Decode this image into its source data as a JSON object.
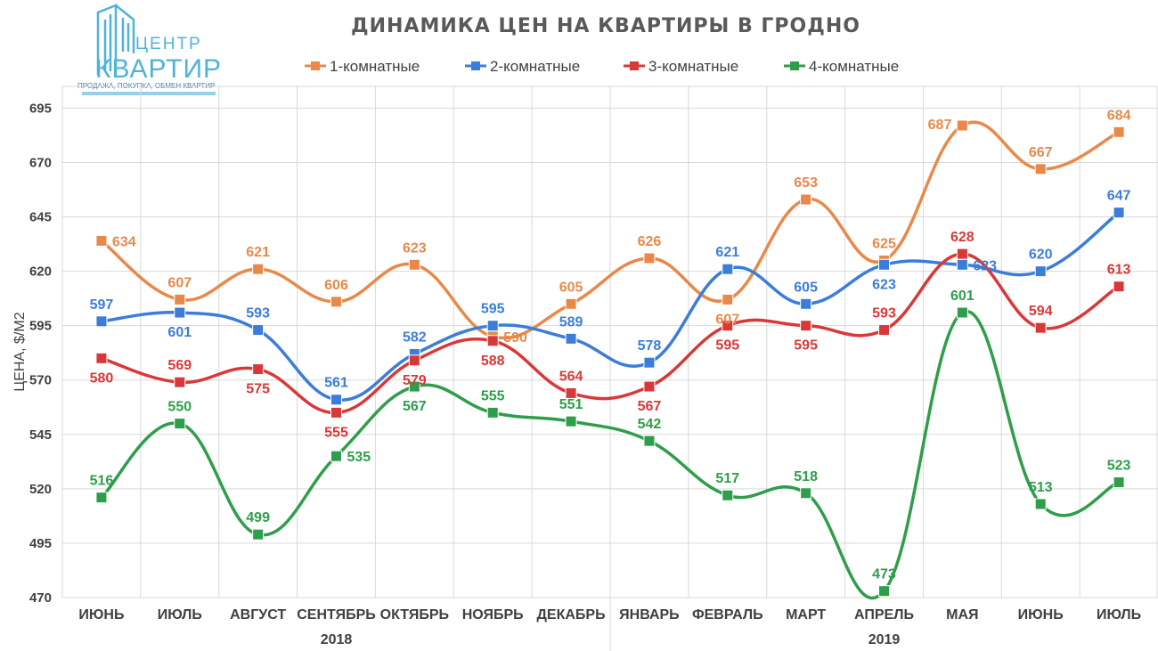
{
  "logo": {
    "top": "ЦЕНТР",
    "main": "КВАРТИР",
    "sub": "ПРОДАЖА, ПОКУПКА, ОБМЕН КВАРТИР",
    "color": "#4fb3d9"
  },
  "chart_data": {
    "type": "line",
    "title": "ДИНАМИКА ЦЕН НА КВАРТИРЫ В ГРОДНО",
    "ylabel": "ЦЕНА, $/М2",
    "xlabel": "",
    "ylim": [
      470,
      705
    ],
    "yticks": [
      470,
      495,
      520,
      545,
      570,
      595,
      620,
      645,
      670,
      695
    ],
    "grid": true,
    "legend_position": "top",
    "categories": [
      "ИЮНЬ",
      "ИЮЛЬ",
      "АВГУСТ",
      "СЕНТЯБРЬ",
      "ОКТЯБРЬ",
      "НОЯБРЬ",
      "ДЕКАБРЬ",
      "ЯНВАРЬ",
      "ФЕВРАЛЬ",
      "МАРТ",
      "АПРЕЛЬ",
      "МАЯ",
      "ИЮНЬ",
      "ИЮЛЬ"
    ],
    "year_groups": [
      {
        "label": "2018",
        "start": 0,
        "end": 6
      },
      {
        "label": "2019",
        "start": 7,
        "end": 13
      }
    ],
    "series": [
      {
        "name": "1-комнатные",
        "color": "#e8894a",
        "values": [
          634,
          607,
          621,
          606,
          623,
          590,
          605,
          626,
          607,
          653,
          625,
          687,
          667,
          684
        ]
      },
      {
        "name": "2-комнатные",
        "color": "#3b7dd8",
        "values": [
          597,
          601,
          593,
          561,
          582,
          595,
          589,
          578,
          621,
          605,
          623,
          623,
          620,
          647
        ]
      },
      {
        "name": "3-комнатные",
        "color": "#d93838",
        "values": [
          580,
          569,
          575,
          555,
          579,
          588,
          564,
          567,
          595,
          595,
          593,
          628,
          594,
          613
        ]
      },
      {
        "name": "4-комнатные",
        "color": "#2e9e4a",
        "values": [
          516,
          550,
          499,
          535,
          567,
          555,
          551,
          542,
          517,
          518,
          473,
          601,
          513,
          523
        ]
      }
    ]
  }
}
